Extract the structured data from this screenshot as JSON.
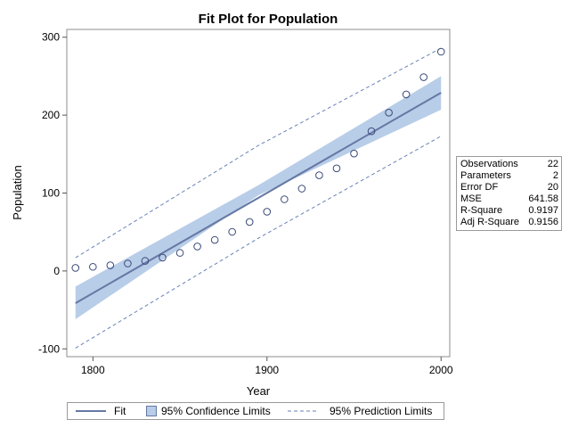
{
  "chart_data": {
    "type": "scatter",
    "title": "Fit Plot for Population",
    "xlabel": "Year",
    "ylabel": "Population",
    "xlim": [
      1785,
      2005
    ],
    "ylim": [
      -110,
      310
    ],
    "xticks": [
      1800,
      1900,
      2000
    ],
    "yticks": [
      -100,
      0,
      100,
      200,
      300
    ],
    "grid": false,
    "legend_position": "bottom",
    "points": {
      "x": [
        1790,
        1800,
        1810,
        1820,
        1830,
        1840,
        1850,
        1860,
        1870,
        1880,
        1890,
        1900,
        1910,
        1920,
        1930,
        1940,
        1950,
        1960,
        1970,
        1980,
        1990,
        2000
      ],
      "y": [
        3.9,
        5.3,
        7.2,
        9.6,
        12.9,
        17.1,
        23.2,
        31.4,
        39.8,
        50.2,
        62.9,
        76.0,
        92.0,
        105.7,
        122.8,
        131.7,
        150.7,
        179.3,
        203.2,
        226.5,
        248.7,
        281.4
      ]
    },
    "fit": {
      "x": [
        1790,
        2000
      ],
      "y": [
        -41.3,
        228.8
      ]
    },
    "confidence_limits": {
      "x": [
        1790,
        1895,
        2000
      ],
      "lower": [
        -62,
        97,
        207
      ],
      "upper": [
        -20,
        110,
        250
      ]
    },
    "prediction_limits": {
      "x": [
        1790,
        1895,
        2000
      ],
      "lower": [
        -99,
        42,
        173
      ],
      "upper": [
        17,
        161,
        286
      ]
    },
    "colors": {
      "fit": "#6678a4",
      "confidence_band": "#b8cde8",
      "prediction": "#6a82b6",
      "points": "#3a4a78"
    },
    "legend": {
      "fit": "Fit",
      "confidence": "95% Confidence Limits",
      "prediction": "95% Prediction Limits"
    },
    "stats": [
      {
        "label": "Observations",
        "value": "22"
      },
      {
        "label": "Parameters",
        "value": "2"
      },
      {
        "label": "Error DF",
        "value": "20"
      },
      {
        "label": "MSE",
        "value": "641.58"
      },
      {
        "label": "R-Square",
        "value": "0.9197"
      },
      {
        "label": "Adj R-Square",
        "value": "0.9156"
      }
    ]
  }
}
